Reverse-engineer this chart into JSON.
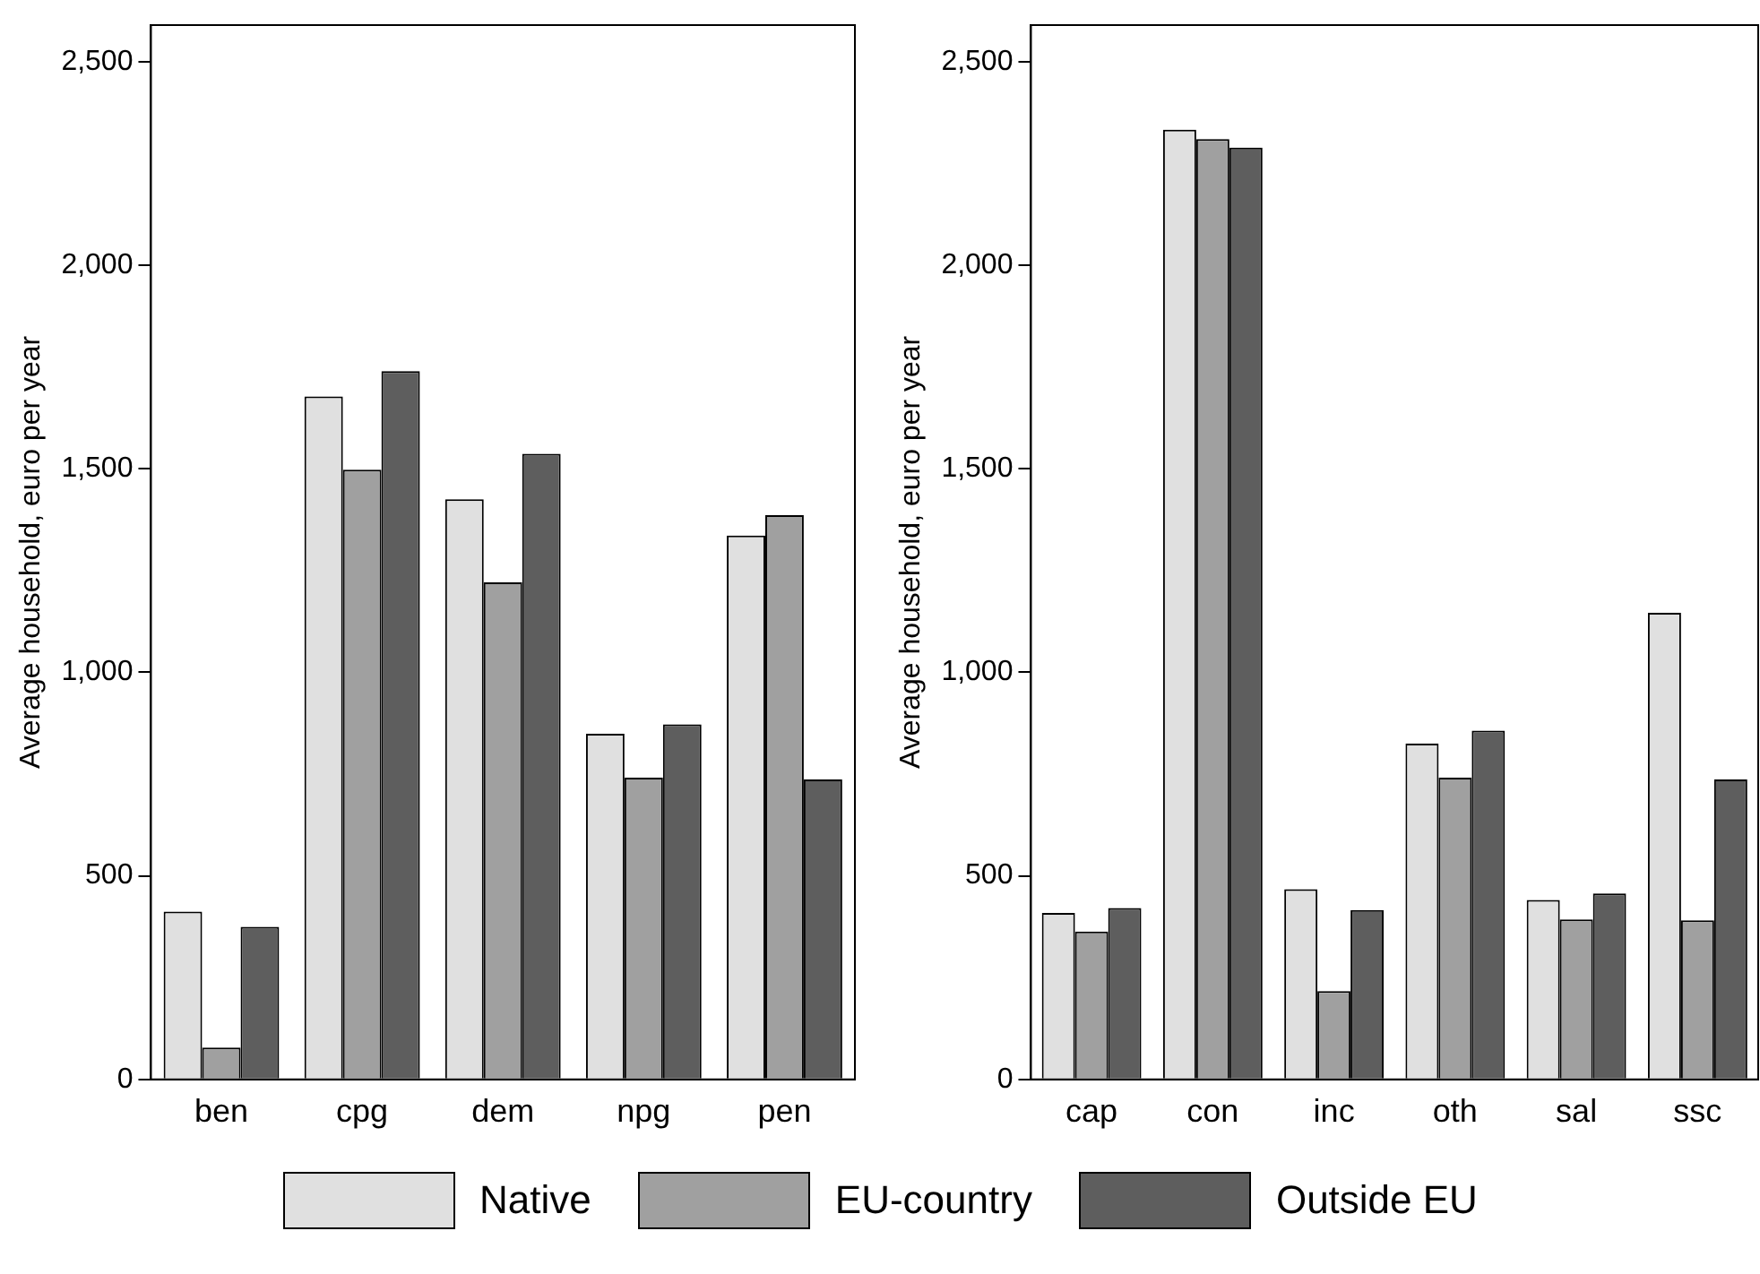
{
  "chart_data": [
    {
      "type": "bar",
      "ylabel": "Average household, euro per year",
      "categories": [
        "ben",
        "cpg",
        "dem",
        "npg",
        "pen"
      ],
      "series": [
        {
          "name": "Native",
          "color": "#e0e0e0",
          "values": [
            412,
            1678,
            1425,
            849,
            1336
          ]
        },
        {
          "name": "EU-country",
          "color": "#a0a0a0",
          "values": [
            78,
            1498,
            1221,
            741,
            1386
          ]
        },
        {
          "name": "Outside EU",
          "color": "#5e5e5e",
          "values": [
            375,
            1740,
            1537,
            872,
            737
          ]
        }
      ],
      "ylim": [
        0,
        2590
      ],
      "yticks": [
        0,
        {
          "value": 500,
          "label": "500"
        },
        {
          "value": 1000,
          "label": "1,000"
        },
        {
          "value": 1500,
          "label": "1,500"
        },
        {
          "value": 2000,
          "label": "2,000"
        },
        {
          "value": 2500,
          "label": "2,500"
        }
      ],
      "grid": false,
      "legend": "bottom"
    },
    {
      "type": "bar",
      "ylabel": "Average household, euro per year",
      "categories": [
        "cap",
        "con",
        "inc",
        "oth",
        "sal",
        "ssc"
      ],
      "series": [
        {
          "color": "#e0e0e0",
          "values": [
            409,
            2333,
            467,
            825,
            441,
            1146
          ]
        },
        {
          "color": "#a0a0a0",
          "values": [
            363,
            2310,
            217,
            741,
            393,
            391
          ]
        },
        {
          "color": "#5e5e5e",
          "values": [
            421,
            2289,
            416,
            857,
            457,
            737
          ]
        }
      ],
      "ylim": [
        0,
        2590
      ],
      "yticks": [
        0,
        {
          "value": 500,
          "label": "500"
        },
        {
          "value": 1000,
          "label": "1,000"
        },
        {
          "value": 1500,
          "label": "1,500"
        },
        {
          "value": 2000,
          "label": "2,000"
        },
        {
          "value": 2500,
          "label": "2,500"
        }
      ],
      "grid": false
    }
  ]
}
